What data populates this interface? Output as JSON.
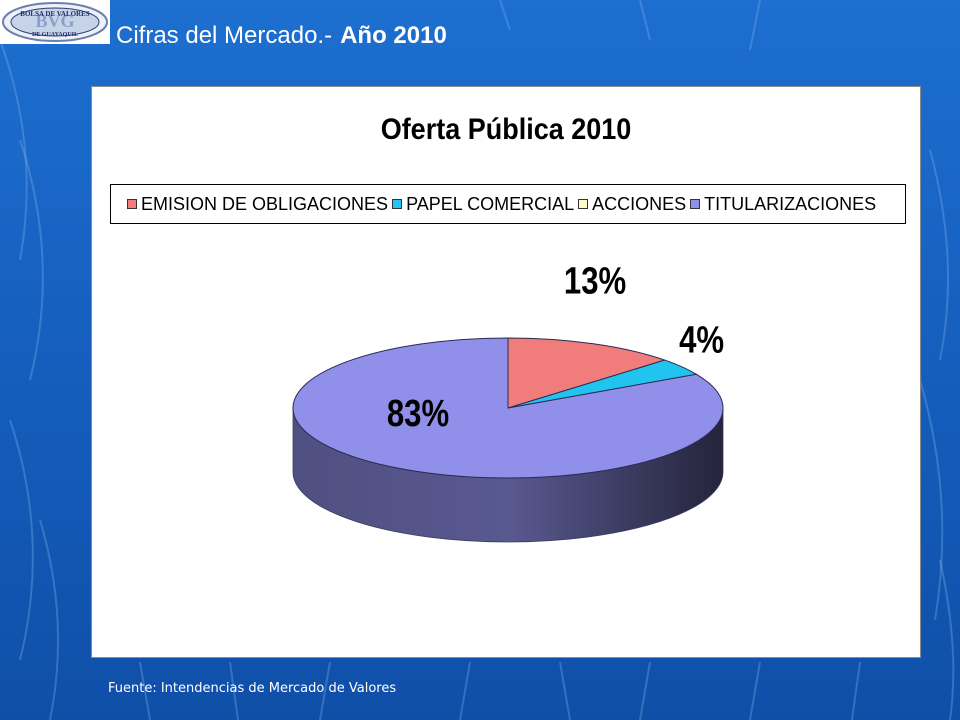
{
  "header": {
    "title": "Cifras del Mercado.-",
    "year_label": "Año 2010",
    "logo": {
      "top_text": "BOLSA DE VALORES",
      "bottom_text": "DE GUAYAQUIL",
      "monogram": "BVG"
    }
  },
  "chart_data": {
    "type": "pie",
    "variant": "3d",
    "title": "Oferta Pública 2010",
    "legend_position": "top",
    "categories": [
      "EMISION DE OBLIGACIONES",
      "PAPEL COMERCIAL",
      "ACCIONES",
      "TITULARIZACIONES"
    ],
    "values": [
      13,
      4,
      0,
      83
    ],
    "data_labels": [
      "13%",
      "4%",
      "",
      "83%"
    ],
    "colors": [
      "#f07c7c",
      "#20c4ee",
      "#fcfcc8",
      "#9090ea"
    ]
  },
  "footer": {
    "source": "Fuente: Intendencias de Mercado de Valores"
  }
}
